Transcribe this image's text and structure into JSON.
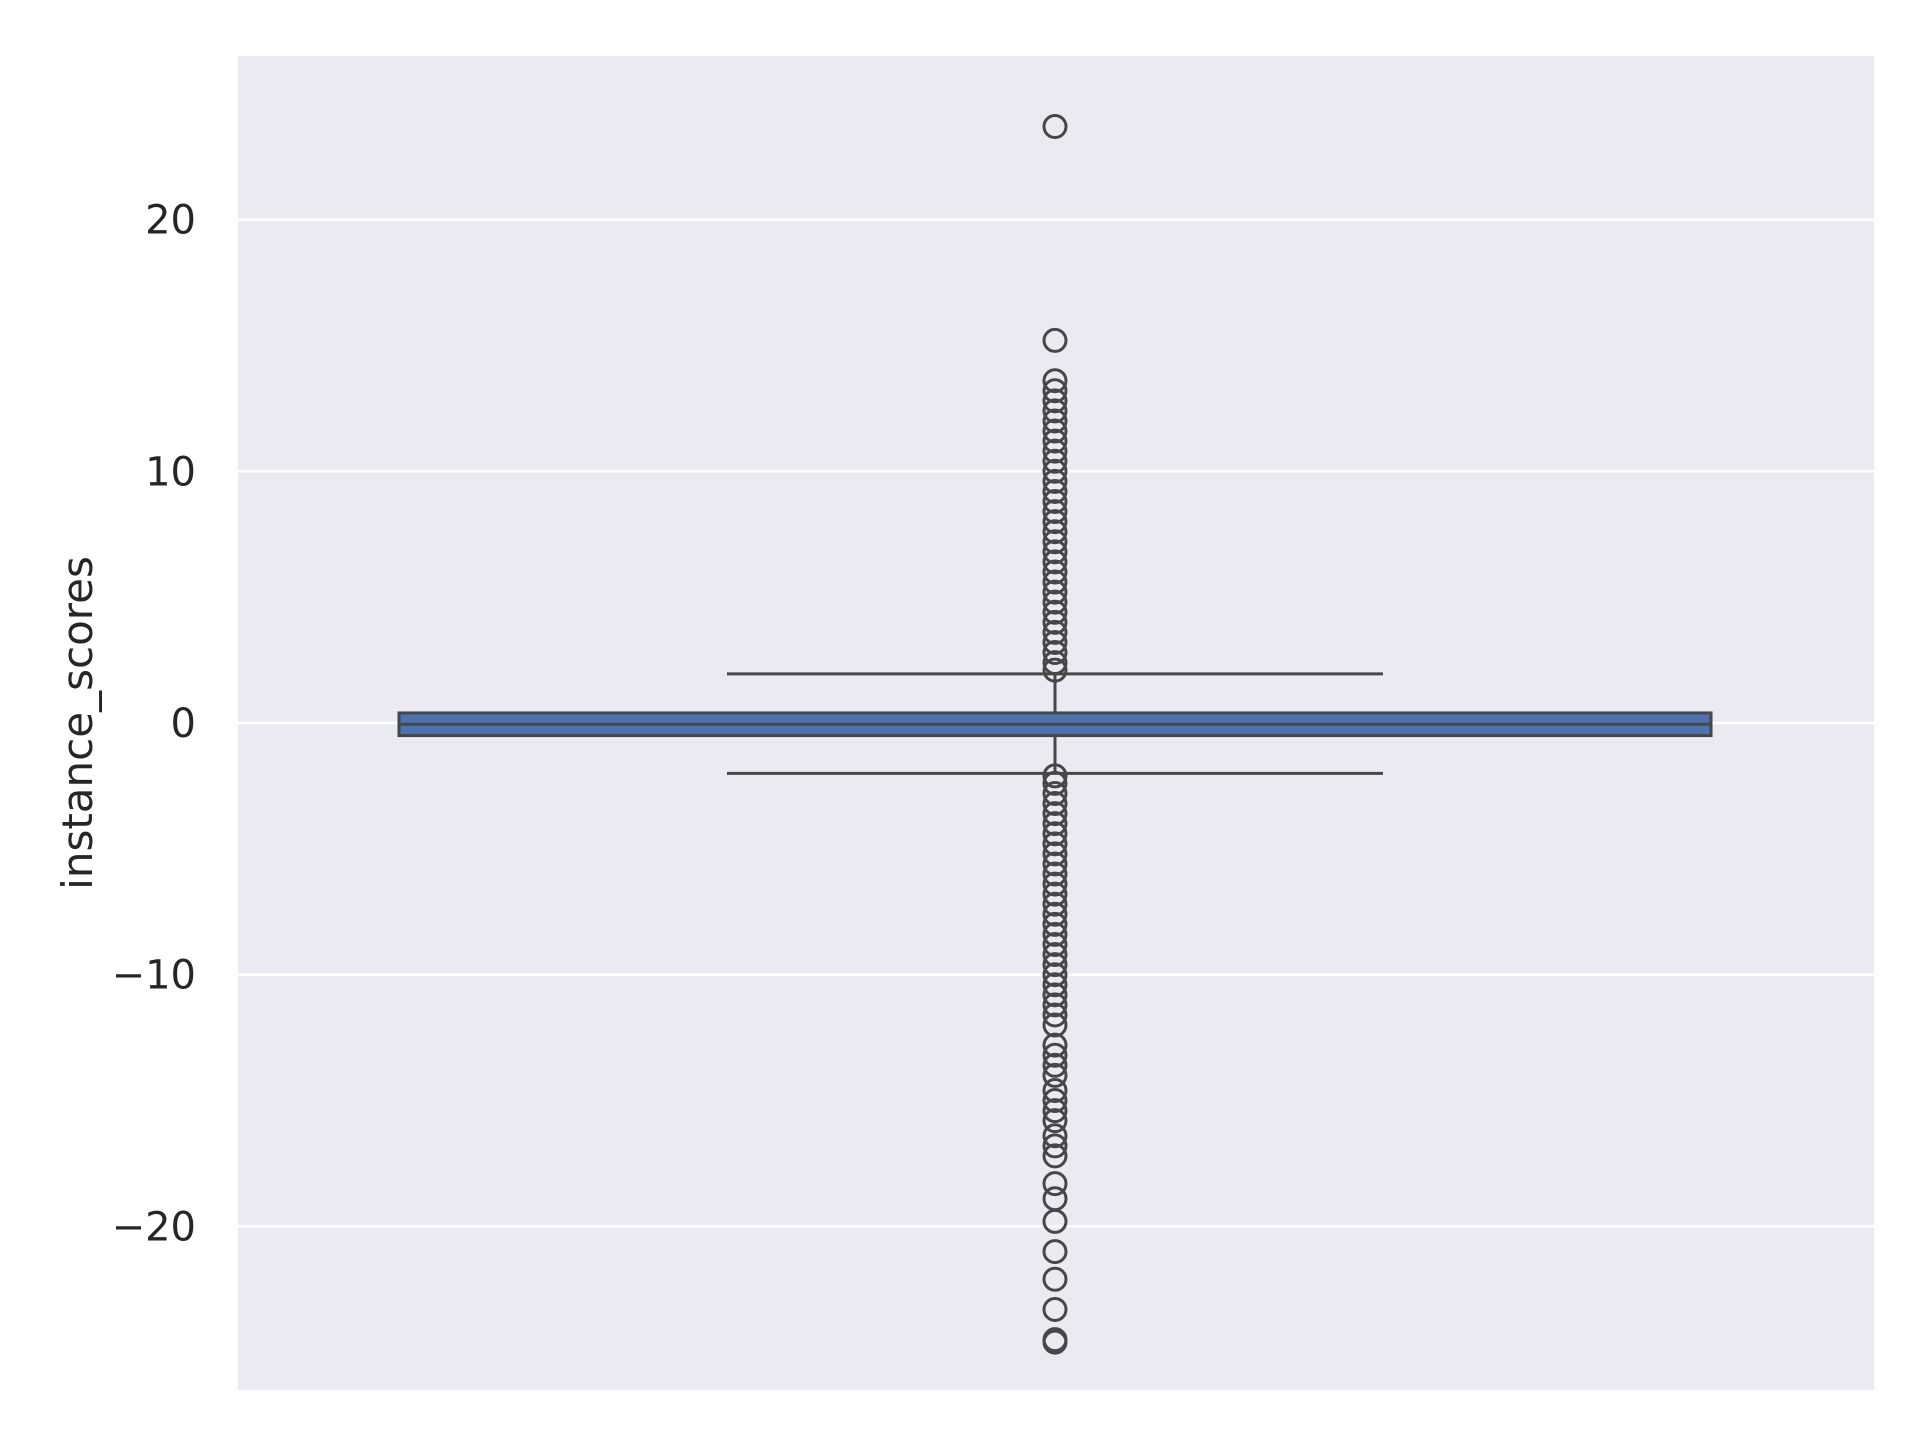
{
  "chart_data": {
    "type": "box",
    "title": "",
    "xlabel": "",
    "ylabel": "instance_scores",
    "ylim": [
      -26.5,
      26.5
    ],
    "yticks": [
      20,
      10,
      0,
      -10,
      -20
    ],
    "ytick_labels": [
      "20",
      "10",
      "0",
      "−10",
      "−20"
    ],
    "grid": true,
    "box": {
      "median": -0.05,
      "q1": -0.5,
      "q3": 0.4,
      "whisker_low": -2.0,
      "whisker_high": 1.95
    },
    "outliers_high": [
      23.7,
      15.2,
      13.6,
      13.2,
      12.8,
      12.4,
      12.0,
      11.6,
      11.2,
      10.8,
      10.4,
      10.0,
      9.6,
      9.2,
      8.8,
      8.4,
      8.0,
      7.6,
      7.2,
      6.8,
      6.4,
      6.0,
      5.6,
      5.2,
      4.8,
      4.4,
      4.0,
      3.6,
      3.2,
      2.8,
      2.4,
      2.1
    ],
    "outliers_low": [
      -2.1,
      -2.4,
      -2.8,
      -3.2,
      -3.6,
      -4.0,
      -4.4,
      -4.8,
      -5.2,
      -5.6,
      -6.0,
      -6.4,
      -6.8,
      -7.2,
      -7.6,
      -8.0,
      -8.4,
      -8.8,
      -9.2,
      -9.6,
      -10.0,
      -10.4,
      -10.8,
      -11.2,
      -11.6,
      -12.0,
      -12.8,
      -13.2,
      -13.6,
      -14.0,
      -14.6,
      -15.0,
      -15.4,
      -15.8,
      -16.4,
      -16.8,
      -17.2,
      -18.3,
      -18.9,
      -19.8,
      -21.0,
      -22.1,
      -23.3,
      -24.5,
      -24.6
    ],
    "colors": {
      "background": "#eaeaf2",
      "grid": "#ffffff",
      "box_fill": "#4c72b0",
      "line": "#474747"
    }
  }
}
